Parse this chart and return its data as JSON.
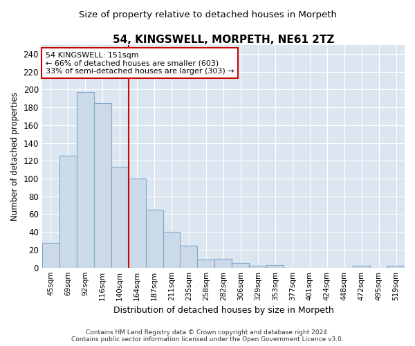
{
  "title": "54, KINGSWELL, MORPETH, NE61 2TZ",
  "subtitle": "Size of property relative to detached houses in Morpeth",
  "xlabel": "Distribution of detached houses by size in Morpeth",
  "ylabel": "Number of detached properties",
  "bar_labels": [
    "45sqm",
    "69sqm",
    "92sqm",
    "116sqm",
    "140sqm",
    "164sqm",
    "187sqm",
    "211sqm",
    "235sqm",
    "258sqm",
    "282sqm",
    "306sqm",
    "329sqm",
    "353sqm",
    "377sqm",
    "401sqm",
    "424sqm",
    "448sqm",
    "472sqm",
    "495sqm",
    "519sqm"
  ],
  "bar_values": [
    28,
    126,
    197,
    185,
    113,
    100,
    65,
    40,
    25,
    9,
    10,
    5,
    2,
    3,
    0,
    0,
    0,
    0,
    2,
    0,
    2
  ],
  "bar_color": "#ccd9e8",
  "bar_edge_color": "#7fa8cc",
  "vline_color": "#cc0000",
  "annotation_line1": "54 KINGSWELL: 151sqm",
  "annotation_line2": "← 66% of detached houses are smaller (603)",
  "annotation_line3": "33% of semi-detached houses are larger (303) →",
  "annotation_box_color": "#ffffff",
  "annotation_box_edge": "#cc0000",
  "ylim": [
    0,
    250
  ],
  "yticks": [
    0,
    20,
    40,
    60,
    80,
    100,
    120,
    140,
    160,
    180,
    200,
    220,
    240
  ],
  "footer_line1": "Contains HM Land Registry data © Crown copyright and database right 2024.",
  "footer_line2": "Contains public sector information licensed under the Open Government Licence v3.0.",
  "fig_bg_color": "#ffffff",
  "plot_bg_color": "#dce6f0",
  "grid_color": "#ffffff"
}
